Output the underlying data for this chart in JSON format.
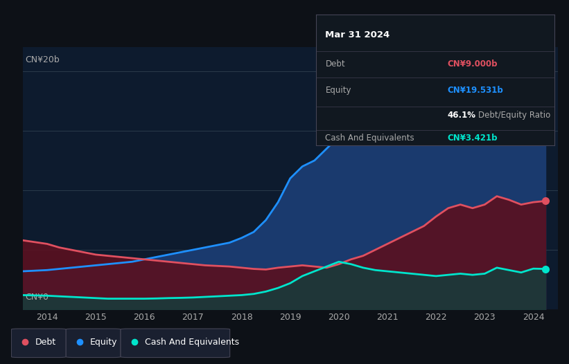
{
  "bg_color": "#0d1117",
  "plot_bg_color": "#0d1b2e",
  "tooltip": {
    "date": "Mar 31 2024",
    "debt_label": "Debt",
    "debt_value": "CN¥9.000b",
    "equity_label": "Equity",
    "equity_value": "CN¥19.531b",
    "ratio_pct": "46.1%",
    "ratio_text": "Debt/Equity Ratio",
    "cash_label": "Cash And Equivalents",
    "cash_value": "CN¥3.421b"
  },
  "ylabel_top": "CN¥20b",
  "ylabel_bottom": "CN¥0",
  "xlim": [
    2013.5,
    2024.5
  ],
  "ylim": [
    0,
    22
  ],
  "xticks": [
    2014,
    2015,
    2016,
    2017,
    2018,
    2019,
    2020,
    2021,
    2022,
    2023,
    2024
  ],
  "equity_color": "#1e90ff",
  "equity_fill": "#1a3a6e",
  "debt_color": "#e05060",
  "debt_fill": "#5a1020",
  "cash_color": "#00e5cc",
  "cash_fill": "#1a3a3a",
  "legend_bg": "#1a2030",
  "equity_data": {
    "years": [
      2013.5,
      2014,
      2014.25,
      2014.5,
      2014.75,
      2015,
      2015.25,
      2015.5,
      2015.75,
      2016,
      2016.25,
      2016.5,
      2016.75,
      2017,
      2017.25,
      2017.5,
      2017.75,
      2018,
      2018.25,
      2018.5,
      2018.75,
      2019,
      2019.25,
      2019.5,
      2019.75,
      2020,
      2020.25,
      2020.5,
      2020.75,
      2021,
      2021.25,
      2021.5,
      2021.75,
      2022,
      2022.25,
      2022.5,
      2022.75,
      2023,
      2023.25,
      2023.5,
      2023.75,
      2024,
      2024.25
    ],
    "values": [
      3.2,
      3.3,
      3.4,
      3.5,
      3.6,
      3.7,
      3.8,
      3.9,
      4.0,
      4.2,
      4.4,
      4.6,
      4.8,
      5.0,
      5.2,
      5.4,
      5.6,
      6.0,
      6.5,
      7.5,
      9.0,
      11.0,
      12.0,
      12.5,
      13.5,
      14.5,
      15.5,
      16.0,
      16.5,
      17.0,
      17.5,
      17.8,
      18.0,
      18.2,
      18.5,
      18.8,
      19.0,
      19.2,
      19.4,
      19.5,
      19.5,
      19.531,
      19.6
    ]
  },
  "debt_data": {
    "years": [
      2013.5,
      2014,
      2014.25,
      2014.5,
      2014.75,
      2015,
      2015.25,
      2015.5,
      2015.75,
      2016,
      2016.25,
      2016.5,
      2016.75,
      2017,
      2017.25,
      2017.5,
      2017.75,
      2018,
      2018.25,
      2018.5,
      2018.75,
      2019,
      2019.25,
      2019.5,
      2019.75,
      2020,
      2020.25,
      2020.5,
      2020.75,
      2021,
      2021.25,
      2021.5,
      2021.75,
      2022,
      2022.25,
      2022.5,
      2022.75,
      2023,
      2023.25,
      2023.5,
      2023.75,
      2024,
      2024.25
    ],
    "values": [
      5.8,
      5.5,
      5.2,
      5.0,
      4.8,
      4.6,
      4.5,
      4.4,
      4.3,
      4.2,
      4.1,
      4.0,
      3.9,
      3.8,
      3.7,
      3.65,
      3.6,
      3.5,
      3.4,
      3.35,
      3.5,
      3.6,
      3.7,
      3.6,
      3.5,
      3.8,
      4.2,
      4.5,
      5.0,
      5.5,
      6.0,
      6.5,
      7.0,
      7.8,
      8.5,
      8.8,
      8.5,
      8.8,
      9.5,
      9.2,
      8.8,
      9.0,
      9.1
    ]
  },
  "cash_data": {
    "years": [
      2013.5,
      2014,
      2014.25,
      2014.5,
      2014.75,
      2015,
      2015.25,
      2015.5,
      2015.75,
      2016,
      2016.25,
      2016.5,
      2016.75,
      2017,
      2017.25,
      2017.5,
      2017.75,
      2018,
      2018.25,
      2018.5,
      2018.75,
      2019,
      2019.25,
      2019.5,
      2019.75,
      2020,
      2020.25,
      2020.5,
      2020.75,
      2021,
      2021.25,
      2021.5,
      2021.75,
      2022,
      2022.25,
      2022.5,
      2022.75,
      2023,
      2023.25,
      2023.5,
      2023.75,
      2024,
      2024.25
    ],
    "values": [
      1.2,
      1.15,
      1.1,
      1.05,
      1.0,
      0.95,
      0.9,
      0.9,
      0.9,
      0.9,
      0.92,
      0.95,
      0.97,
      1.0,
      1.05,
      1.1,
      1.15,
      1.2,
      1.3,
      1.5,
      1.8,
      2.2,
      2.8,
      3.2,
      3.6,
      4.0,
      3.8,
      3.5,
      3.3,
      3.2,
      3.1,
      3.0,
      2.9,
      2.8,
      2.9,
      3.0,
      2.9,
      3.0,
      3.5,
      3.3,
      3.1,
      3.421,
      3.4
    ]
  }
}
